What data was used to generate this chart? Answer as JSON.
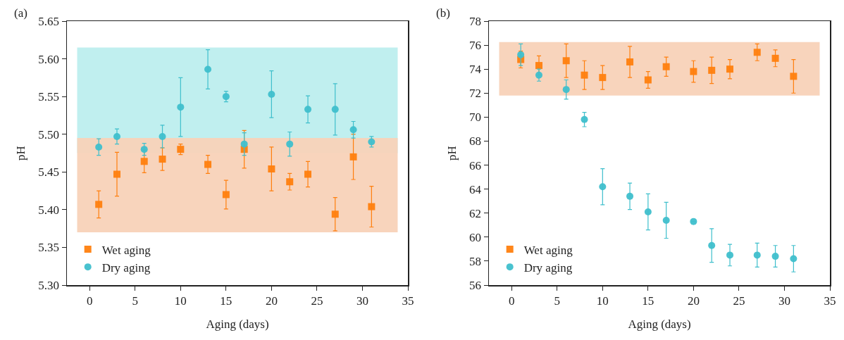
{
  "chart_data": [
    {
      "type": "scatter",
      "xlabel": "Aging (days)",
      "ylabel": "pH",
      "annotations": [
        "(a)"
      ],
      "x": [
        1,
        3,
        6,
        8,
        10,
        13,
        15,
        17,
        20,
        22,
        24,
        27,
        29,
        31
      ],
      "series": [
        {
          "name": "Wet aging",
          "color": "#ff7f0e",
          "marker": "square",
          "values": [
            5.407,
            5.447,
            5.464,
            5.467,
            5.48,
            5.46,
            5.42,
            5.48,
            5.454,
            5.437,
            5.447,
            5.394,
            5.47,
            5.404
          ],
          "errors": [
            0.018,
            0.029,
            0.015,
            0.015,
            0.007,
            0.012,
            0.019,
            0.025,
            0.029,
            0.011,
            0.017,
            0.022,
            0.03,
            0.027
          ]
        },
        {
          "name": "Dry aging",
          "color": "#3fbfcc",
          "marker": "circle",
          "values": [
            5.483,
            5.497,
            5.48,
            5.497,
            5.536,
            5.586,
            5.55,
            5.487,
            5.553,
            5.487,
            5.533,
            5.533,
            5.506,
            5.49
          ],
          "errors": [
            0.011,
            0.01,
            0.008,
            0.015,
            0.039,
            0.026,
            0.007,
            0.015,
            0.031,
            0.016,
            0.018,
            0.034,
            0.011,
            0.007
          ]
        }
      ],
      "bands": [
        {
          "axis": "y",
          "from": 5.475,
          "to": 5.615,
          "color": "#bdeeee"
        },
        {
          "axis": "y",
          "from": 5.37,
          "to": 5.495,
          "color": "#f8d2b8"
        }
      ],
      "xlim": [
        -2.5,
        35
      ],
      "xticks": [
        0,
        5,
        10,
        15,
        20,
        25,
        30,
        35
      ],
      "ylim": [
        5.3,
        5.65
      ],
      "yticks": [
        {
          "value": 5.3,
          "label": "5.30"
        },
        {
          "value": 5.35,
          "label": "5.35"
        },
        {
          "value": 5.4,
          "label": "5.40"
        },
        {
          "value": 5.45,
          "label": "5.45"
        },
        {
          "value": 5.5,
          "label": "5.50"
        },
        {
          "value": 5.55,
          "label": "5.55"
        },
        {
          "value": 5.6,
          "label": "5.60"
        },
        {
          "value": 5.65,
          "label": "5.65"
        }
      ],
      "grid": false,
      "legend": "bottom left"
    },
    {
      "type": "scatter",
      "xlabel": "Aging (days)",
      "ylabel": "pH",
      "annotations": [
        "(b)"
      ],
      "x": [
        1,
        3,
        6,
        8,
        10,
        13,
        15,
        17,
        20,
        22,
        24,
        27,
        29,
        31
      ],
      "series": [
        {
          "name": "Wet aging",
          "color": "#ff7f0e",
          "marker": "square",
          "values": [
            74.8,
            74.3,
            74.7,
            73.5,
            73.3,
            74.6,
            73.1,
            74.2,
            73.8,
            73.9,
            74.0,
            75.4,
            74.9,
            73.4
          ],
          "errors": [
            0.7,
            0.8,
            1.4,
            1.2,
            1.0,
            1.3,
            0.7,
            0.8,
            0.9,
            1.1,
            0.8,
            0.7,
            0.7,
            1.4
          ]
        },
        {
          "name": "Dry aging",
          "color": "#3fbfcc",
          "marker": "circle",
          "values": [
            75.2,
            73.5,
            72.3,
            69.8,
            64.2,
            63.4,
            62.1,
            61.4,
            61.3,
            59.3,
            58.5,
            58.5,
            58.4,
            58.2
          ],
          "errors": [
            0.9,
            0.5,
            0.8,
            0.6,
            1.5,
            1.1,
            1.5,
            1.5,
            null,
            1.4,
            0.9,
            1.0,
            0.9,
            1.1
          ]
        }
      ],
      "bands": [
        {
          "axis": "y",
          "from": 71.8,
          "to": 76.25,
          "color": "#f8d2b8"
        }
      ],
      "xlim": [
        -2.5,
        35
      ],
      "xticks": [
        0,
        5,
        10,
        15,
        20,
        25,
        30,
        35
      ],
      "ylim": [
        56,
        78
      ],
      "yticks": [
        56,
        58,
        60,
        62,
        64,
        66,
        68,
        70,
        72,
        74,
        76,
        78
      ],
      "grid": false,
      "legend": "bottom left"
    }
  ]
}
